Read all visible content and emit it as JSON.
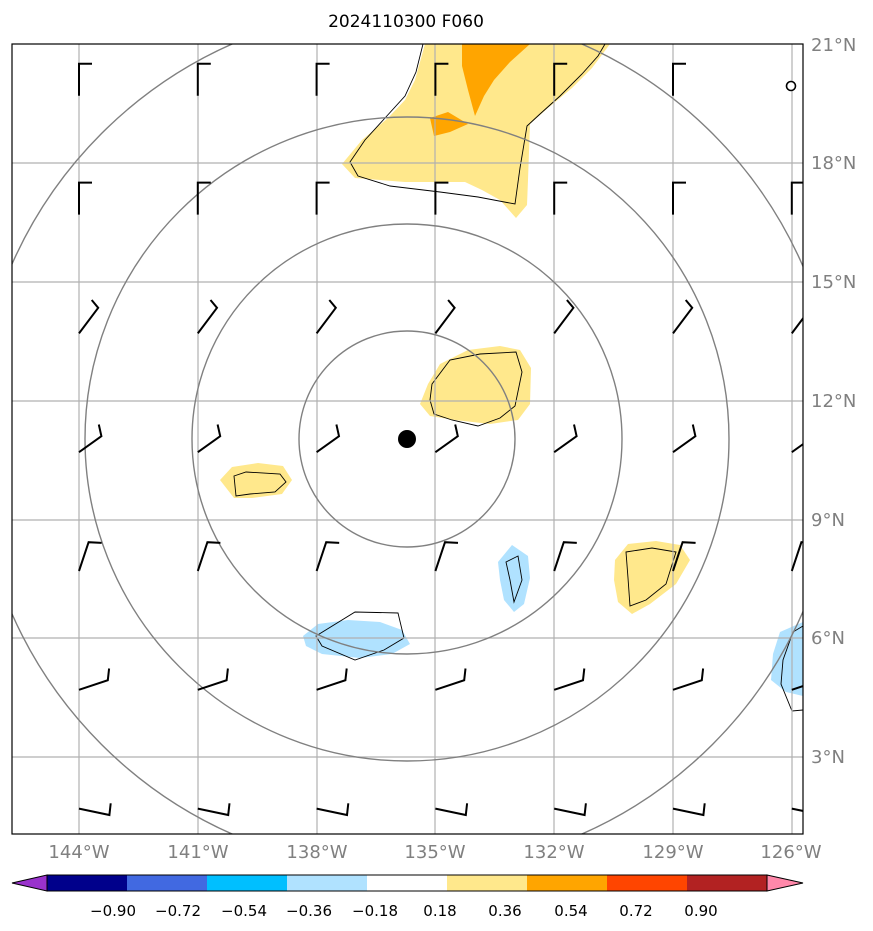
{
  "title": "2024110300 F060",
  "map": {
    "lon_range": [
      -145.6,
      -125.8
    ],
    "lat_range": [
      1.0,
      21.0
    ],
    "lon_ticks": [
      "144°W",
      "141°W",
      "138°W",
      "135°W",
      "132°W",
      "129°W",
      "126°W"
    ],
    "lat_ticks": [
      "3°N",
      "6°N",
      "9°N",
      "12°N",
      "15°N",
      "18°N",
      "21°N"
    ],
    "storm_center": {
      "lon": -135.7,
      "lat": 11.1
    },
    "range_rings": [
      {
        "radius_lat_deg": 2.7
      },
      {
        "radius_lat_deg": 5.4
      },
      {
        "radius_lat_deg": 8.1
      },
      {
        "radius_lat_deg": 10.9
      }
    ],
    "wind_barbs": {
      "lons": [
        -144,
        -141,
        -138,
        -135,
        -132,
        -129,
        -126
      ],
      "lats": [
        20,
        17,
        14,
        11,
        8,
        5,
        2
      ],
      "calm_marker": {
        "lon": -126,
        "lat": 20
      }
    },
    "filled_regions": {
      "pos_0.18": [
        "yellow band north",
        "patch near 133.5W 12.5N",
        "patch near 140.5W 9.8N",
        "patch near 130.5W 7.6N"
      ],
      "pos_0.36": [
        "orange band north 18.5-21N"
      ],
      "neg_0.18": [
        "patch near 136.5W 6N",
        "patch near 133W 7.8N",
        "patch near 126W 5N"
      ]
    }
  },
  "colorbar": {
    "labels": [
      "−0.90",
      "−0.72",
      "−0.54",
      "−0.36",
      "−0.18",
      "0.18",
      "0.36",
      "0.54",
      "0.72",
      "0.90"
    ],
    "colors": [
      "#9932cc",
      "#00008b",
      "#4169e1",
      "#00bfff",
      "#b0e2ff",
      "#ffffff",
      "#ffe88c",
      "#ffa500",
      "#ff4500",
      "#b22222",
      "#ff88aa"
    ]
  }
}
